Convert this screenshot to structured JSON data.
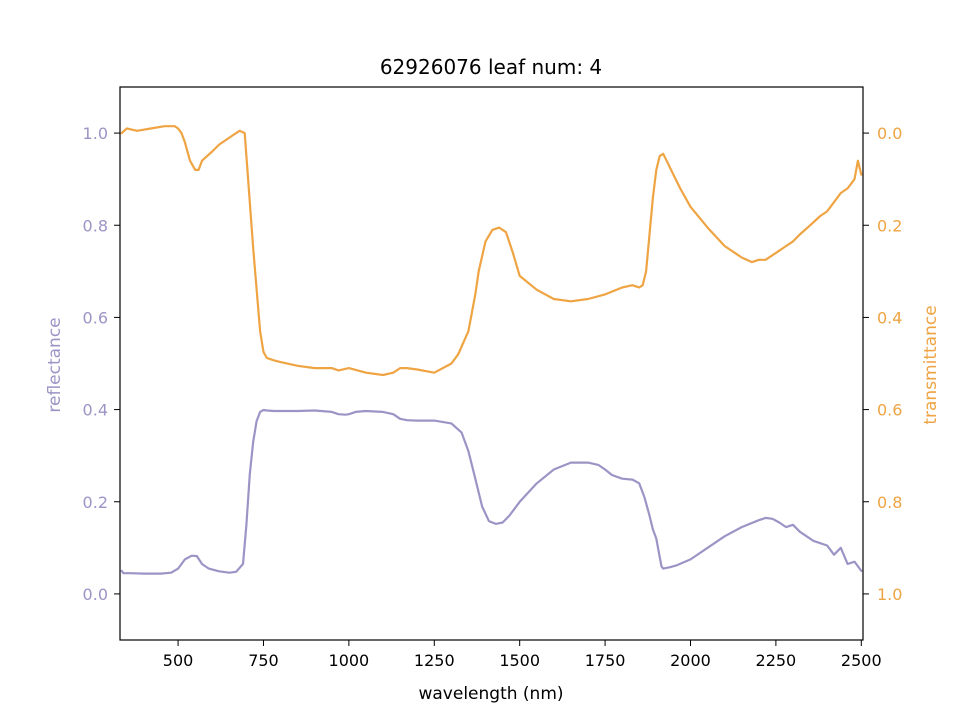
{
  "chart_data": {
    "type": "line",
    "title": "62926076 leaf num: 4",
    "xlabel": "wavelength (nm)",
    "ylabel_left": "reflectance",
    "ylabel_right": "transmittance",
    "xlim": [
      330,
      2505
    ],
    "ylim_left": [
      -0.1,
      1.1
    ],
    "ylim_right": [
      1.1,
      -0.1
    ],
    "right_axis_inverted": true,
    "grid": false,
    "x_ticks": [
      500,
      750,
      1000,
      1250,
      1500,
      1750,
      2000,
      2250,
      2500
    ],
    "x_tick_labels": [
      "500",
      "750",
      "1000",
      "1250",
      "1500",
      "1750",
      "2000",
      "2250",
      "2500"
    ],
    "y_left_ticks": [
      0.0,
      0.2,
      0.4,
      0.6,
      0.8,
      1.0
    ],
    "y_left_tick_labels": [
      "0.0",
      "0.2",
      "0.4",
      "0.6",
      "0.8",
      "1.0"
    ],
    "y_right_ticks": [
      0.0,
      0.2,
      0.4,
      0.6,
      0.8,
      1.0
    ],
    "y_right_tick_labels": [
      "0.0",
      "0.2",
      "0.4",
      "0.6",
      "0.8",
      "1.0"
    ],
    "colors": {
      "reflectance": "#9b95c6",
      "transmittance": "#efa443",
      "axes": "#000000"
    },
    "series": [
      {
        "axis": "left",
        "color": "#9b95c6",
        "x": [
          335,
          340,
          360,
          400,
          450,
          480,
          500,
          520,
          540,
          555,
          570,
          590,
          620,
          650,
          670,
          690,
          700,
          710,
          720,
          730,
          740,
          750,
          760,
          780,
          800,
          850,
          900,
          950,
          970,
          990,
          1000,
          1020,
          1050,
          1100,
          1130,
          1150,
          1170,
          1200,
          1250,
          1300,
          1330,
          1350,
          1370,
          1390,
          1410,
          1430,
          1450,
          1470,
          1500,
          1550,
          1600,
          1650,
          1700,
          1730,
          1750,
          1770,
          1800,
          1830,
          1850,
          1865,
          1880,
          1890,
          1900,
          1910,
          1915,
          1920,
          1940,
          1960,
          2000,
          2050,
          2100,
          2150,
          2200,
          2220,
          2240,
          2260,
          2280,
          2300,
          2320,
          2340,
          2360,
          2380,
          2400,
          2420,
          2440,
          2460,
          2480,
          2500
        ],
        "y": [
          0.05,
          0.045,
          0.045,
          0.044,
          0.044,
          0.046,
          0.055,
          0.075,
          0.083,
          0.082,
          0.065,
          0.055,
          0.049,
          0.046,
          0.048,
          0.065,
          0.15,
          0.26,
          0.33,
          0.375,
          0.395,
          0.399,
          0.398,
          0.397,
          0.397,
          0.397,
          0.398,
          0.395,
          0.39,
          0.389,
          0.39,
          0.395,
          0.397,
          0.395,
          0.39,
          0.38,
          0.377,
          0.376,
          0.376,
          0.37,
          0.35,
          0.31,
          0.25,
          0.19,
          0.158,
          0.152,
          0.155,
          0.17,
          0.2,
          0.24,
          0.27,
          0.285,
          0.285,
          0.28,
          0.27,
          0.258,
          0.25,
          0.248,
          0.24,
          0.21,
          0.17,
          0.14,
          0.12,
          0.08,
          0.06,
          0.055,
          0.058,
          0.062,
          0.075,
          0.1,
          0.125,
          0.145,
          0.16,
          0.165,
          0.163,
          0.155,
          0.145,
          0.15,
          0.135,
          0.125,
          0.115,
          0.11,
          0.105,
          0.085,
          0.1,
          0.065,
          0.07,
          0.05
        ]
      },
      {
        "axis": "right",
        "color": "#efa443",
        "x": [
          335,
          350,
          380,
          420,
          460,
          490,
          500,
          510,
          520,
          535,
          550,
          560,
          570,
          585,
          600,
          620,
          640,
          660,
          680,
          695,
          700,
          720,
          740,
          750,
          760,
          780,
          800,
          850,
          900,
          950,
          970,
          1000,
          1050,
          1100,
          1130,
          1150,
          1170,
          1200,
          1250,
          1300,
          1320,
          1350,
          1370,
          1380,
          1400,
          1420,
          1440,
          1460,
          1480,
          1500,
          1550,
          1600,
          1650,
          1700,
          1750,
          1800,
          1830,
          1850,
          1860,
          1870,
          1880,
          1890,
          1900,
          1910,
          1920,
          1930,
          1950,
          1970,
          2000,
          2050,
          2100,
          2150,
          2180,
          2200,
          2220,
          2250,
          2280,
          2300,
          2320,
          2350,
          2380,
          2400,
          2420,
          2440,
          2460,
          2480,
          2490,
          2500
        ],
        "y": [
          0.0,
          -0.01,
          -0.005,
          -0.01,
          -0.015,
          -0.015,
          -0.01,
          0.0,
          0.02,
          0.06,
          0.08,
          0.08,
          0.06,
          0.05,
          0.04,
          0.025,
          0.015,
          0.005,
          -0.005,
          0.0,
          0.05,
          0.25,
          0.43,
          0.475,
          0.488,
          0.493,
          0.497,
          0.505,
          0.51,
          0.51,
          0.515,
          0.51,
          0.52,
          0.525,
          0.52,
          0.51,
          0.51,
          0.513,
          0.52,
          0.5,
          0.48,
          0.43,
          0.35,
          0.3,
          0.235,
          0.21,
          0.205,
          0.215,
          0.26,
          0.31,
          0.34,
          0.36,
          0.365,
          0.36,
          0.35,
          0.335,
          0.33,
          0.335,
          0.33,
          0.3,
          0.22,
          0.14,
          0.08,
          0.05,
          0.045,
          0.06,
          0.09,
          0.12,
          0.16,
          0.205,
          0.245,
          0.27,
          0.28,
          0.275,
          0.275,
          0.26,
          0.245,
          0.235,
          0.22,
          0.2,
          0.18,
          0.17,
          0.15,
          0.13,
          0.12,
          0.1,
          0.06,
          0.09
        ]
      }
    ]
  }
}
